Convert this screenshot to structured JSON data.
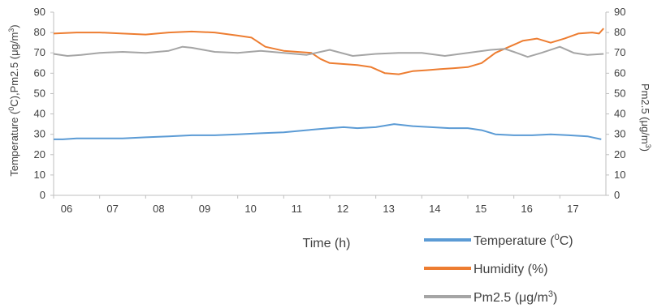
{
  "chart_data": {
    "type": "line",
    "xlabel": "Time (h)",
    "ylabel_left": {
      "main": "Temperature (",
      "sup1": "0",
      "mid": "C),Pm2.5 (μg/m",
      "sup2": "3",
      "end": ")"
    },
    "ylabel_right": {
      "main": "Pm2.5 (μg/m",
      "sup": "3",
      "end": ")"
    },
    "xlim": [
      6,
      18
    ],
    "ylim": [
      0,
      90
    ],
    "x_ticks": [
      6,
      7,
      8,
      9,
      10,
      11,
      12,
      13,
      14,
      15,
      16,
      17
    ],
    "x_tick_labels": [
      "06",
      "07",
      "08",
      "09",
      "10",
      "11",
      "12",
      "13",
      "14",
      "15",
      "16",
      "17"
    ],
    "y_ticks": [
      0,
      10,
      20,
      30,
      40,
      50,
      60,
      70,
      80,
      90
    ],
    "y_tick_labels": [
      "0",
      "10",
      "20",
      "30",
      "40",
      "50",
      "60",
      "70",
      "80",
      "90"
    ],
    "grid": false,
    "legend_position": "bottom-right",
    "series": [
      {
        "key": "temperature",
        "name": "Temperature (",
        "name_sup": "0",
        "name_end": "C)",
        "color": "#5B9BD5",
        "x": [
          6.0,
          6.2,
          6.5,
          7.0,
          7.5,
          8.0,
          8.5,
          9.0,
          9.5,
          10.0,
          10.5,
          11.0,
          11.5,
          12.0,
          12.3,
          12.6,
          13.0,
          13.4,
          13.8,
          14.2,
          14.6,
          15.0,
          15.3,
          15.6,
          16.0,
          16.4,
          16.8,
          17.2,
          17.6,
          17.9
        ],
        "y": [
          27.5,
          27.5,
          28,
          28,
          28,
          28.5,
          29,
          29.5,
          29.5,
          30,
          30.5,
          31,
          32,
          33,
          33.5,
          33,
          33.5,
          35,
          34,
          33.5,
          33,
          33,
          32,
          30,
          29.5,
          29.5,
          30,
          29.5,
          29,
          27.5
        ]
      },
      {
        "key": "humidity",
        "name": "Humidity (%)",
        "color": "#ED7D31",
        "x": [
          6.0,
          6.5,
          7.0,
          7.5,
          8.0,
          8.5,
          9.0,
          9.5,
          10.0,
          10.3,
          10.6,
          11.0,
          11.3,
          11.6,
          11.8,
          12.0,
          12.3,
          12.6,
          12.9,
          13.2,
          13.5,
          13.8,
          14.1,
          14.4,
          14.7,
          15.0,
          15.3,
          15.6,
          15.9,
          16.2,
          16.5,
          16.8,
          17.1,
          17.4,
          17.7,
          17.85,
          17.95
        ],
        "y": [
          79.5,
          80,
          80,
          79.5,
          79,
          80,
          80.5,
          80,
          78.5,
          77.5,
          73,
          71,
          70.5,
          70,
          67,
          65,
          64.5,
          64,
          63,
          60,
          59.5,
          61,
          61.5,
          62,
          62.5,
          63,
          65,
          70,
          73,
          76,
          77,
          75,
          77,
          79.5,
          80,
          79.5,
          82
        ]
      },
      {
        "key": "pm25",
        "name": "Pm2.5 (μg/m",
        "name_sup": "3",
        "name_end": ")",
        "color": "#A5A5A5",
        "x": [
          6.0,
          6.3,
          6.6,
          7.0,
          7.5,
          8.0,
          8.5,
          8.8,
          9.0,
          9.5,
          10.0,
          10.5,
          11.0,
          11.5,
          12.0,
          12.5,
          13.0,
          13.5,
          14.0,
          14.5,
          15.0,
          15.5,
          15.8,
          16.0,
          16.3,
          16.6,
          17.0,
          17.3,
          17.6,
          17.95
        ],
        "y": [
          69.5,
          68.5,
          69,
          70,
          70.5,
          70,
          71,
          73,
          72.5,
          70.5,
          70,
          71,
          70,
          69,
          71.5,
          68.5,
          69.5,
          70,
          70,
          68.5,
          70,
          71.5,
          72,
          70.5,
          68,
          70,
          73,
          70,
          69,
          69.5
        ]
      }
    ]
  }
}
